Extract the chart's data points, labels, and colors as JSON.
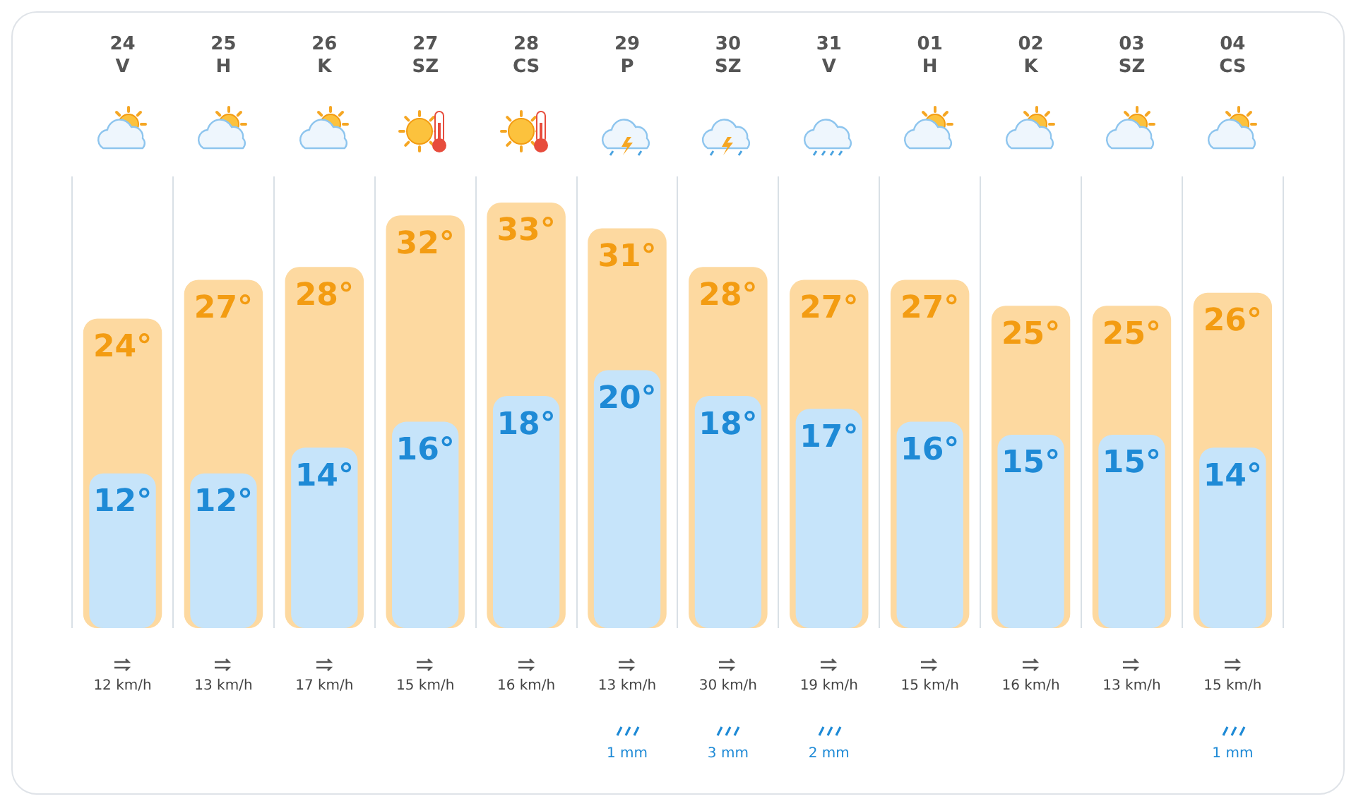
{
  "chart_data": {
    "type": "bar",
    "categories": [
      "24\nV",
      "25\nH",
      "26\nK",
      "27\nSZ",
      "28\nCS",
      "29\nP",
      "30\nSZ",
      "31\nV",
      "01\nH",
      "02\nK",
      "03\nSZ",
      "04\nCS"
    ],
    "series": [
      {
        "color": "#fdd9a0",
        "values": [
          24,
          27,
          28,
          32,
          33,
          31,
          28,
          27,
          27,
          25,
          25,
          26
        ],
        "value_labels": [
          "24°",
          "27°",
          "28°",
          "32°",
          "33°",
          "31°",
          "28°",
          "27°",
          "27°",
          "25°",
          "25°",
          "26°"
        ]
      },
      {
        "color": "#c6e4fa",
        "values": [
          12,
          12,
          14,
          16,
          18,
          20,
          18,
          17,
          16,
          15,
          15,
          14
        ],
        "value_labels": [
          "12°",
          "12°",
          "14°",
          "16°",
          "18°",
          "20°",
          "18°",
          "17°",
          "16°",
          "15°",
          "15°",
          "14°"
        ]
      }
    ],
    "tick_labels": "x",
    "grid": "x",
    "legend": false,
    "annotations": [
      {
        "text": "12 km/h",
        "x": "24\nV"
      },
      {
        "text": "13 km/h",
        "x": "25\nH"
      },
      {
        "text": "17 km/h",
        "x": "26\nK"
      },
      {
        "text": "15 km/h",
        "x": "27\nSZ"
      },
      {
        "text": "16 km/h",
        "x": "28\nCS"
      },
      {
        "text": "13 km/h",
        "x": "29\nP"
      },
      "1 mm",
      {
        "text": "30 km/h",
        "x": "30\nSZ"
      },
      "3 mm",
      {
        "text": "19 km/h",
        "x": "31\nV"
      },
      "2 mm",
      {
        "text": "15 km/h",
        "x": "01\nH"
      },
      {
        "text": "16 km/h",
        "x": "02\nK"
      },
      {
        "text": "13 km/h",
        "x": "03\nSZ"
      },
      {
        "text": "15 km/h",
        "x": "04\nCS"
      },
      "1 mm"
    ]
  }
}
